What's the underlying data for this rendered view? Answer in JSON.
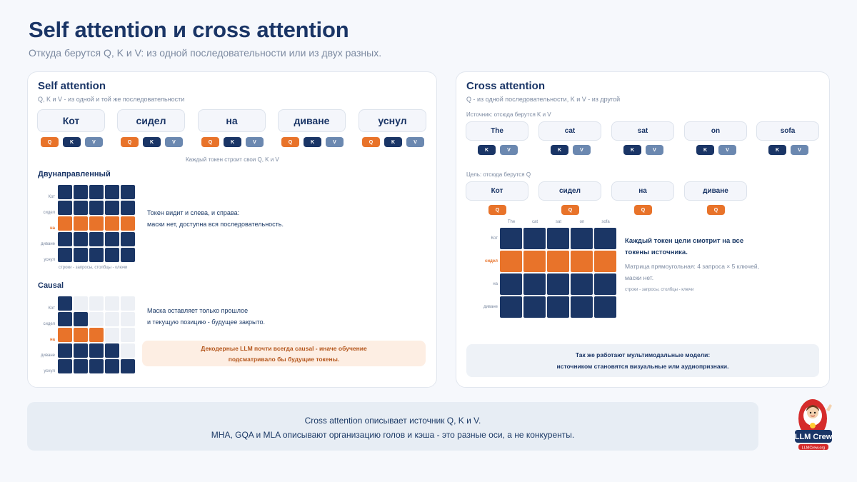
{
  "header": {
    "title": "Self attention и cross attention",
    "subtitle": "Откуда берутся Q, K и V: из одной последовательности или из двух разных."
  },
  "self_attention": {
    "title": "Self attention",
    "subtitle": "Q, K и V - из одной и той же последовательности",
    "tokens": [
      "Кот",
      "сидел",
      "на",
      "диване",
      "уснул"
    ],
    "badges": [
      "Q",
      "K",
      "V"
    ],
    "note": "Каждый токен строит свои Q, K и V",
    "bidirectional": {
      "title": "Двунаправленный",
      "rows": [
        "Кот",
        "сидел",
        "на",
        "диване",
        "уснул"
      ],
      "highlight_row": 2,
      "matrix_note": "строки - запросы, столбцы - ключи",
      "desc_line1": "Токен видит и слева, и справа:",
      "desc_line2": "маски нет, доступна вся последовательность."
    },
    "causal": {
      "title": "Causal",
      "rows": [
        "Кот",
        "сидел",
        "на",
        "диване",
        "уснул"
      ],
      "highlight_row": 2,
      "desc_line1": "Маска оставляет только прошлое",
      "desc_line2": "и текущую позицию - будущее закрыто.",
      "warn_line1": "Декодерные LLM почти всегда causal - иначе обучение",
      "warn_line2": "подсматривало бы будущие токены."
    }
  },
  "cross_attention": {
    "title": "Cross attention",
    "subtitle": "Q - из одной последовательности, K и V - из другой",
    "source_label": "Источник: отсюда берутся K и V",
    "source_tokens": [
      "The",
      "cat",
      "sat",
      "on",
      "sofa"
    ],
    "source_badges": [
      "K",
      "V"
    ],
    "target_label": "Цель: отсюда берутся Q",
    "target_tokens": [
      "Кот",
      "сидел",
      "на",
      "диване"
    ],
    "target_badge": "Q",
    "matrix_cols": [
      "The",
      "cat",
      "sat",
      "on",
      "sofa"
    ],
    "matrix_rows": [
      "Кот",
      "сидел",
      "на",
      "диване"
    ],
    "highlight_row": 1,
    "desc_line1": "Каждый токен цели смотрит на все",
    "desc_line2": "токены источника.",
    "desc2_line1": "Матрица прямоугольная: 4 запроса × 5 ключей,",
    "desc2_line2": "маски нет.",
    "matrix_note": "строки - запросы, столбцы - ключи",
    "info_line1": "Так же работают мультимодальные модели:",
    "info_line2": "источником становятся визуальные или аудиопризнаки."
  },
  "footer": {
    "line1": "Cross attention описывает источник Q, K и V.",
    "line2": "MHA, GQA и MLA описывают организацию голов и кэша - это разные оси, а не конкуренты."
  },
  "logo": {
    "text": "LLM Crew",
    "sub": "LLMCrew.org"
  },
  "colors": {
    "navy": "#1b3665",
    "orange": "#e8732a",
    "steel": "#6b88b0",
    "light": "#edf0f5"
  }
}
